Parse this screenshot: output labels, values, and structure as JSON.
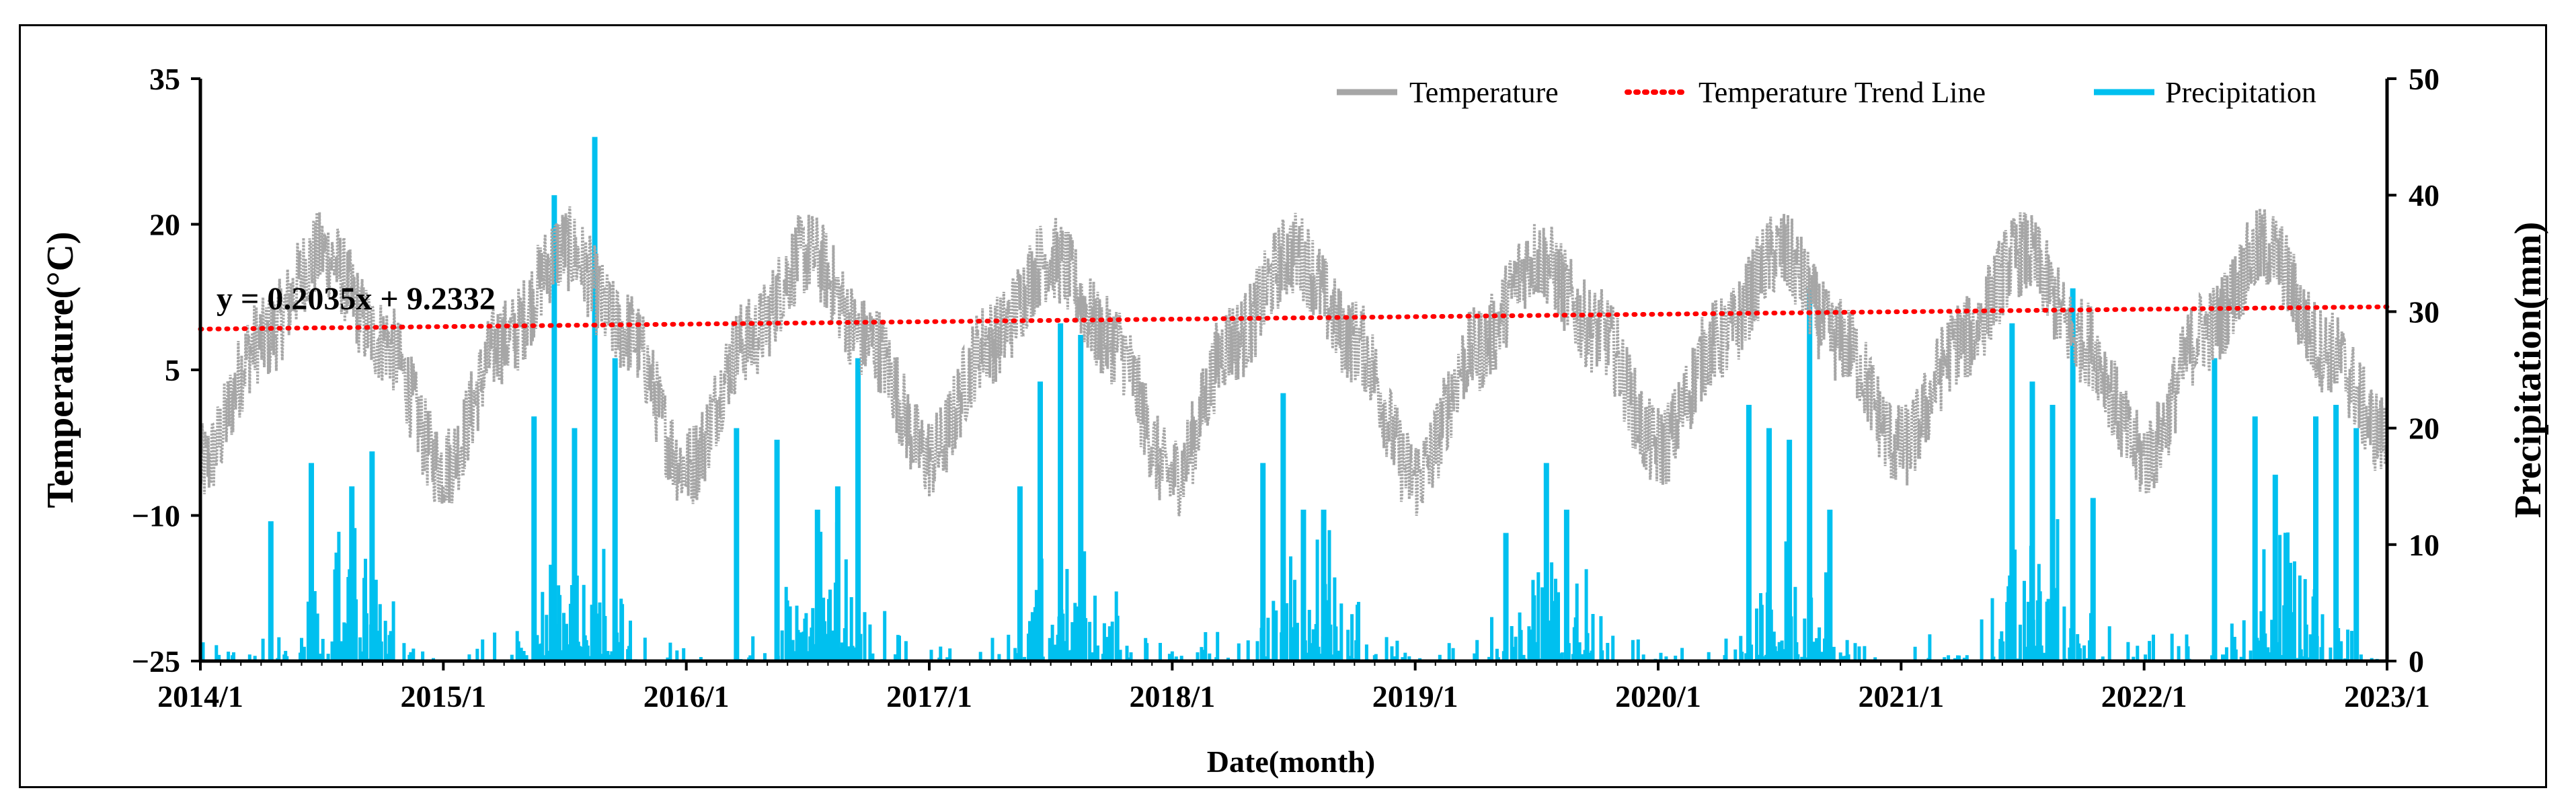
{
  "chart_data": {
    "type": "line",
    "title": "",
    "xlabel": "Date(month)",
    "ylabel_left": "Temperature(°C)",
    "ylabel_right": "Precipitation(mm)",
    "x_ticks": [
      "2014/1",
      "2015/1",
      "2016/1",
      "2017/1",
      "2018/1",
      "2019/1",
      "2020/1",
      "2021/1",
      "2022/1",
      "2023/1"
    ],
    "y_left_ticks": [
      "−25",
      "−10",
      "5",
      "20",
      "35"
    ],
    "y_left_range": [
      -25,
      35
    ],
    "y_right_ticks": [
      "0",
      "10",
      "20",
      "30",
      "40",
      "50"
    ],
    "y_right_range": [
      0,
      50
    ],
    "x_range_years": [
      2014,
      2023
    ],
    "legend": {
      "placement": "top-right",
      "entries": [
        "Temperature",
        "Temperature Trend Line",
        "Precipitation"
      ]
    },
    "trendline": {
      "equation": "y = 0.2035x + 9.2332",
      "start_value": 9.2,
      "end_value": 11.5
    },
    "colors": {
      "temperature": "#a6a6a6",
      "trend": "#ff0000",
      "precipitation": "#00c0ef"
    },
    "series": [
      {
        "name": "Temperature",
        "axis": "left",
        "monthly_mean": [
          {
            "month": "2014/1",
            "value": -5
          },
          {
            "month": "2014/4",
            "value": 8
          },
          {
            "month": "2014/7",
            "value": 17
          },
          {
            "month": "2014/10",
            "value": 8
          },
          {
            "month": "2015/1",
            "value": -5
          },
          {
            "month": "2015/4",
            "value": 8
          },
          {
            "month": "2015/7",
            "value": 17.5
          },
          {
            "month": "2015/10",
            "value": 9
          },
          {
            "month": "2016/1",
            "value": -5
          },
          {
            "month": "2016/4",
            "value": 8
          },
          {
            "month": "2016/7",
            "value": 17
          },
          {
            "month": "2016/10",
            "value": 8
          },
          {
            "month": "2017/1",
            "value": -4
          },
          {
            "month": "2017/4",
            "value": 8
          },
          {
            "month": "2017/7",
            "value": 16.5
          },
          {
            "month": "2017/10",
            "value": 8
          },
          {
            "month": "2018/1",
            "value": -6
          },
          {
            "month": "2018/4",
            "value": 8
          },
          {
            "month": "2018/7",
            "value": 17
          },
          {
            "month": "2018/10",
            "value": 8
          },
          {
            "month": "2019/1",
            "value": -6
          },
          {
            "month": "2019/4",
            "value": 7
          },
          {
            "month": "2019/7",
            "value": 16.5
          },
          {
            "month": "2019/10",
            "value": 9
          },
          {
            "month": "2020/1",
            "value": -3
          },
          {
            "month": "2020/4",
            "value": 8
          },
          {
            "month": "2020/7",
            "value": 17
          },
          {
            "month": "2020/10",
            "value": 8
          },
          {
            "month": "2021/1",
            "value": -3
          },
          {
            "month": "2021/4",
            "value": 8
          },
          {
            "month": "2021/7",
            "value": 17
          },
          {
            "month": "2021/10",
            "value": 8
          },
          {
            "month": "2022/1",
            "value": -4
          },
          {
            "month": "2022/4",
            "value": 9
          },
          {
            "month": "2022/7",
            "value": 17.5
          },
          {
            "month": "2022/10",
            "value": 7
          },
          {
            "month": "2023/1",
            "value": -2
          }
        ],
        "daily_amplitude": 4.5
      },
      {
        "name": "Precipitation",
        "axis": "right",
        "daily_peaks": [
          {
            "date": "2014/4",
            "value": 12
          },
          {
            "date": "2014/6",
            "value": 17
          },
          {
            "date": "2014/8",
            "value": 15
          },
          {
            "date": "2014/9",
            "value": 18
          },
          {
            "date": "2015/5",
            "value": 21
          },
          {
            "date": "2015/6",
            "value": 40
          },
          {
            "date": "2015/7",
            "value": 20
          },
          {
            "date": "2015/8",
            "value": 45
          },
          {
            "date": "2015/9",
            "value": 26
          },
          {
            "date": "2016/3",
            "value": 20
          },
          {
            "date": "2016/5",
            "value": 19
          },
          {
            "date": "2016/7",
            "value": 13
          },
          {
            "date": "2016/8",
            "value": 15
          },
          {
            "date": "2016/9",
            "value": 26
          },
          {
            "date": "2017/5",
            "value": 15
          },
          {
            "date": "2017/6",
            "value": 24
          },
          {
            "date": "2017/7",
            "value": 29
          },
          {
            "date": "2017/8",
            "value": 28
          },
          {
            "date": "2018/5",
            "value": 17
          },
          {
            "date": "2018/6",
            "value": 23
          },
          {
            "date": "2018/7",
            "value": 13
          },
          {
            "date": "2018/8",
            "value": 13
          },
          {
            "date": "2019/5",
            "value": 11
          },
          {
            "date": "2019/7",
            "value": 17
          },
          {
            "date": "2019/8",
            "value": 13
          },
          {
            "date": "2020/5",
            "value": 22
          },
          {
            "date": "2020/6",
            "value": 20
          },
          {
            "date": "2020/7",
            "value": 19
          },
          {
            "date": "2020/8",
            "value": 32
          },
          {
            "date": "2020/9",
            "value": 13
          },
          {
            "date": "2021/6",
            "value": 29
          },
          {
            "date": "2021/7",
            "value": 24
          },
          {
            "date": "2021/8",
            "value": 22
          },
          {
            "date": "2021/9",
            "value": 32
          },
          {
            "date": "2021/10",
            "value": 14
          },
          {
            "date": "2022/4",
            "value": 26
          },
          {
            "date": "2022/6",
            "value": 21
          },
          {
            "date": "2022/7",
            "value": 16
          },
          {
            "date": "2022/9",
            "value": 21
          },
          {
            "date": "2022/10",
            "value": 22
          },
          {
            "date": "2022/11",
            "value": 20
          }
        ]
      }
    ]
  }
}
